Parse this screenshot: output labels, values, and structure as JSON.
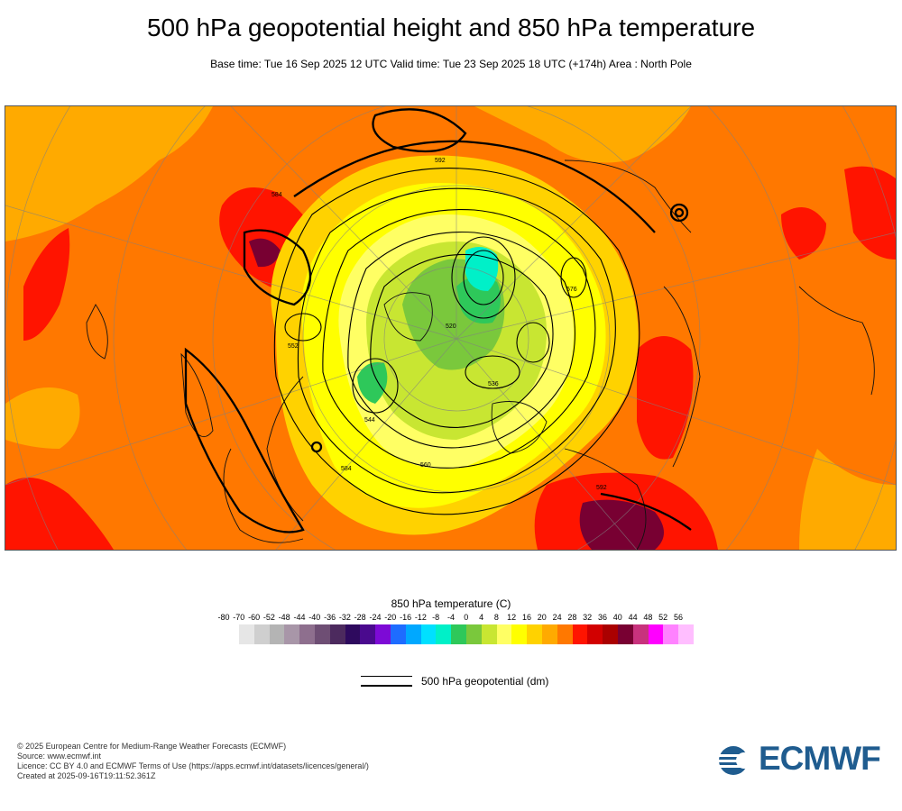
{
  "title": "500 hPa geopotential height and 850 hPa temperature",
  "subtitle": "Base time: Tue 16 Sep 2025 12 UTC Valid time: Tue 23 Sep 2025 18 UTC (+174h) Area : North Pole",
  "legend": {
    "title": "850 hPa temperature (C)",
    "ticks": [
      "-80",
      "-70",
      "-60",
      "-52",
      "-48",
      "-44",
      "-40",
      "-36",
      "-32",
      "-28",
      "-24",
      "-20",
      "-16",
      "-12",
      "-8",
      "-4",
      "0",
      "4",
      "8",
      "12",
      "16",
      "20",
      "24",
      "28",
      "32",
      "36",
      "40",
      "44",
      "48",
      "52",
      "56"
    ],
    "colors": [
      "#e6e6e6",
      "#cfcfcf",
      "#b4b4b4",
      "#a896a8",
      "#8e6f8e",
      "#6e4e74",
      "#4c2a5e",
      "#2e0a5e",
      "#4a0a8e",
      "#7d0ad6",
      "#1e6cff",
      "#00a8ff",
      "#00e0ff",
      "#00f0c8",
      "#2ec85a",
      "#7ac83c",
      "#c8e632",
      "#ffff64",
      "#ffff00",
      "#ffd200",
      "#ffaa00",
      "#ff7800",
      "#ff1400",
      "#d20000",
      "#aa0000",
      "#780032",
      "#c8327d",
      "#ff00ff",
      "#ff82ff",
      "#ffbeff",
      "#e6c8e6",
      "#e6e6e6"
    ]
  },
  "contour_key": {
    "label": "500 hPa geopotential (dm)"
  },
  "contour_labels": [
    "592",
    "584",
    "576",
    "568",
    "560",
    "552",
    "544",
    "536",
    "528",
    "520",
    "512"
  ],
  "footer": [
    "© 2025 European Centre for Medium-Range Weather Forecasts (ECMWF)",
    "Source: www.ecmwf.int",
    "Licence: CC BY 4.0 and ECMWF Terms of Use (https://apps.ecmwf.int/datasets/licences/general/)",
    "Created at 2025-09-16T19:11:52.361Z"
  ],
  "logo": {
    "text": "ECMWF",
    "color": "#1f5c8f"
  }
}
